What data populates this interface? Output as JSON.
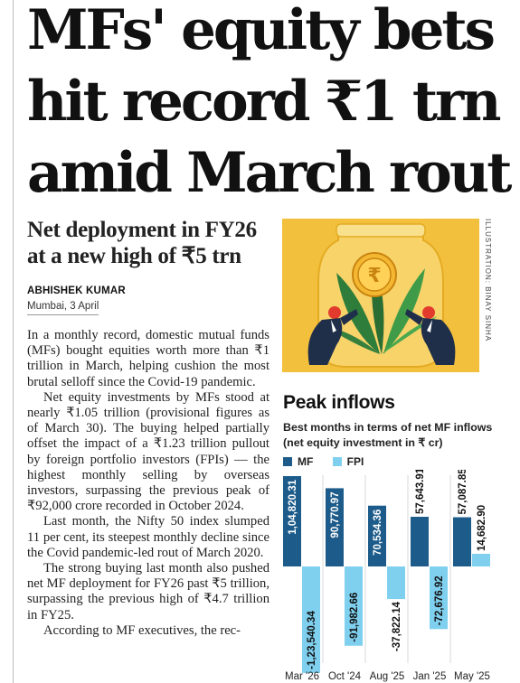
{
  "headline": {
    "line1": "MFs' equity bets",
    "line2": "hit record ₹1 trn",
    "line3": "amid March rout"
  },
  "deck": "Net deployment in FY26 at a new high of ₹5 trn",
  "byline": "ABHISHEK KUMAR",
  "dateline": "Mumbai, 3 April",
  "body": [
    "In a monthly record, domestic mutual funds (MFs) bought equities worth more than ₹1 trillion in March, helping cushion the most brutal selloff since the Covid-19 pandemic.",
    "Net equity investments by MFs stood at nearly ₹1.05 trillion (provisional figures as of March 30). The buying helped partially offset the impact of a ₹1.23 trillion pullout by foreign portfolio investors (FPIs) — the highest monthly selling by overseas investors, surpassing the previous peak of ₹92,000 crore recorded in October 2024.",
    "Last month, the Nifty 50 index slumped 11 per cent, its steepest monthly decline since the Covid pandemic-led rout of March 2020.",
    "The strong buying last month also pushed net MF deployment for FY26 past ₹5 trillion, surpassing the previous high of ₹4.7 trillion in FY25.",
    "According to MF executives, the rec-"
  ],
  "illustration_credit": "ILLUSTRATION: BINAY SINHA",
  "colors": {
    "mf": "#1d5c8a",
    "fpi": "#7fd0ef",
    "illustration_bg": "#f3c03d"
  },
  "chart_data": {
    "type": "bar",
    "title": "Peak inflows",
    "subtitle": "Best months in terms of net MF inflows (net equity investment in ₹ cr)",
    "legend": [
      "MF",
      "FPI"
    ],
    "legend_position": "top-left",
    "categories": [
      "Mar '26",
      "Oct '24",
      "Aug '25",
      "Jan '25",
      "May '25"
    ],
    "series": [
      {
        "name": "MF",
        "values": [
          104820.31,
          90770.97,
          70534.36,
          57643.91,
          57087.85
        ],
        "labels": [
          "1,04,820.31",
          "90,770.97",
          "70,534.36",
          "57,643.91",
          "57,087.85"
        ]
      },
      {
        "name": "FPI",
        "values": [
          -123540.34,
          -91982.66,
          -37822.14,
          -72676.92,
          14682.9
        ],
        "labels": [
          "-1,23,540.34",
          "-91,982.66",
          "-37,822.14",
          "-72,676.92",
          "14,682.90"
        ]
      }
    ],
    "grid": false
  }
}
